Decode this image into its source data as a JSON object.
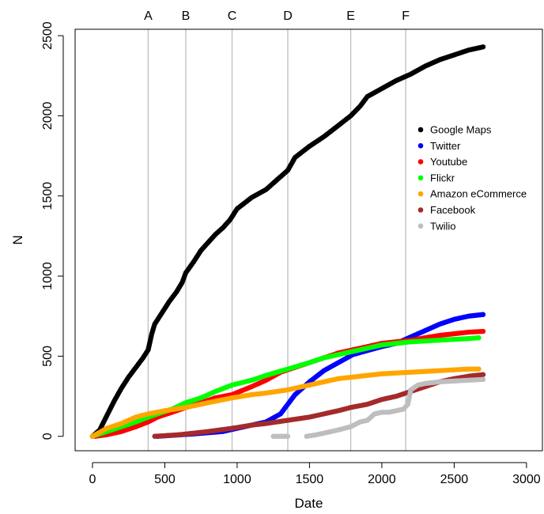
{
  "chart_data": {
    "type": "scatter",
    "xlabel": "Date",
    "ylabel": "N",
    "xlim": [
      -120,
      3110
    ],
    "ylim": [
      -90,
      2540
    ],
    "x_ticks": [
      0,
      500,
      1000,
      1500,
      2000,
      2500,
      3000
    ],
    "y_ticks": [
      0,
      500,
      1000,
      1500,
      2000,
      2500
    ],
    "grid": false,
    "legend_position": "right, upper-middle",
    "event_lines": [
      {
        "label": "A",
        "x": 385,
        "color": "#bebebe"
      },
      {
        "label": "B",
        "x": 645,
        "color": "#bebebe"
      },
      {
        "label": "C",
        "x": 965,
        "color": "#bebebe"
      },
      {
        "label": "D",
        "x": 1350,
        "color": "#bebebe"
      },
      {
        "label": "E",
        "x": 1785,
        "color": "#bebebe"
      },
      {
        "label": "F",
        "x": 2165,
        "color": "#bebebe"
      }
    ],
    "series": [
      {
        "name": "Google Maps",
        "color": "#000000",
        "points": [
          [
            0,
            0
          ],
          [
            50,
            40
          ],
          [
            100,
            130
          ],
          [
            150,
            220
          ],
          [
            200,
            300
          ],
          [
            250,
            370
          ],
          [
            300,
            430
          ],
          [
            350,
            490
          ],
          [
            385,
            540
          ],
          [
            410,
            640
          ],
          [
            430,
            700
          ],
          [
            480,
            770
          ],
          [
            530,
            840
          ],
          [
            580,
            900
          ],
          [
            620,
            960
          ],
          [
            645,
            1020
          ],
          [
            700,
            1090
          ],
          [
            750,
            1160
          ],
          [
            800,
            1210
          ],
          [
            850,
            1260
          ],
          [
            900,
            1300
          ],
          [
            950,
            1350
          ],
          [
            1000,
            1420
          ],
          [
            1100,
            1490
          ],
          [
            1200,
            1540
          ],
          [
            1300,
            1620
          ],
          [
            1350,
            1660
          ],
          [
            1400,
            1740
          ],
          [
            1500,
            1810
          ],
          [
            1600,
            1870
          ],
          [
            1700,
            1940
          ],
          [
            1785,
            2000
          ],
          [
            1850,
            2060
          ],
          [
            1900,
            2120
          ],
          [
            2000,
            2170
          ],
          [
            2100,
            2220
          ],
          [
            2200,
            2260
          ],
          [
            2300,
            2310
          ],
          [
            2400,
            2350
          ],
          [
            2500,
            2380
          ],
          [
            2600,
            2410
          ],
          [
            2700,
            2430
          ]
        ]
      },
      {
        "name": "Twitter",
        "color": "#0000ff",
        "points": [
          [
            450,
            0
          ],
          [
            700,
            15
          ],
          [
            900,
            30
          ],
          [
            1100,
            70
          ],
          [
            1200,
            90
          ],
          [
            1300,
            140
          ],
          [
            1350,
            200
          ],
          [
            1400,
            260
          ],
          [
            1500,
            340
          ],
          [
            1600,
            410
          ],
          [
            1700,
            460
          ],
          [
            1800,
            510
          ],
          [
            2000,
            560
          ],
          [
            2100,
            580
          ],
          [
            2200,
            620
          ],
          [
            2300,
            660
          ],
          [
            2400,
            700
          ],
          [
            2500,
            730
          ],
          [
            2600,
            750
          ],
          [
            2700,
            760
          ]
        ]
      },
      {
        "name": "Youtube",
        "color": "#ff0000",
        "points": [
          [
            20,
            0
          ],
          [
            100,
            10
          ],
          [
            200,
            30
          ],
          [
            300,
            60
          ],
          [
            385,
            90
          ],
          [
            450,
            120
          ],
          [
            550,
            150
          ],
          [
            645,
            180
          ],
          [
            750,
            210
          ],
          [
            850,
            240
          ],
          [
            965,
            260
          ],
          [
            1100,
            310
          ],
          [
            1200,
            350
          ],
          [
            1300,
            400
          ],
          [
            1400,
            430
          ],
          [
            1500,
            460
          ],
          [
            1600,
            490
          ],
          [
            1700,
            520
          ],
          [
            1800,
            540
          ],
          [
            1900,
            560
          ],
          [
            2000,
            580
          ],
          [
            2100,
            590
          ],
          [
            2200,
            600
          ],
          [
            2300,
            615
          ],
          [
            2400,
            630
          ],
          [
            2500,
            640
          ],
          [
            2600,
            650
          ],
          [
            2700,
            655
          ]
        ]
      },
      {
        "name": "Flickr",
        "color": "#00ff00",
        "points": [
          [
            0,
            0
          ],
          [
            100,
            30
          ],
          [
            200,
            60
          ],
          [
            300,
            90
          ],
          [
            385,
            120
          ],
          [
            450,
            140
          ],
          [
            550,
            170
          ],
          [
            645,
            210
          ],
          [
            750,
            240
          ],
          [
            850,
            280
          ],
          [
            965,
            320
          ],
          [
            1100,
            350
          ],
          [
            1200,
            380
          ],
          [
            1350,
            420
          ],
          [
            1500,
            460
          ],
          [
            1600,
            490
          ],
          [
            1700,
            510
          ],
          [
            1800,
            530
          ],
          [
            1900,
            550
          ],
          [
            2000,
            570
          ],
          [
            2100,
            580
          ],
          [
            2200,
            590
          ],
          [
            2300,
            595
          ],
          [
            2400,
            600
          ],
          [
            2500,
            605
          ],
          [
            2600,
            610
          ],
          [
            2670,
            615
          ]
        ]
      },
      {
        "name": "Amazon eCommerce",
        "color": "#ffa500",
        "points": [
          [
            0,
            0
          ],
          [
            100,
            50
          ],
          [
            200,
            80
          ],
          [
            300,
            120
          ],
          [
            385,
            140
          ],
          [
            500,
            160
          ],
          [
            645,
            180
          ],
          [
            800,
            210
          ],
          [
            965,
            240
          ],
          [
            1100,
            260
          ],
          [
            1200,
            270
          ],
          [
            1350,
            290
          ],
          [
            1500,
            320
          ],
          [
            1600,
            340
          ],
          [
            1700,
            360
          ],
          [
            1800,
            370
          ],
          [
            1900,
            380
          ],
          [
            2000,
            390
          ],
          [
            2100,
            395
          ],
          [
            2200,
            400
          ],
          [
            2300,
            405
          ],
          [
            2400,
            410
          ],
          [
            2500,
            415
          ],
          [
            2600,
            420
          ],
          [
            2670,
            420
          ]
        ]
      },
      {
        "name": "Facebook",
        "color": "#a52a2a",
        "points": [
          [
            430,
            0
          ],
          [
            600,
            10
          ],
          [
            800,
            30
          ],
          [
            965,
            50
          ],
          [
            1100,
            70
          ],
          [
            1200,
            80
          ],
          [
            1350,
            100
          ],
          [
            1500,
            120
          ],
          [
            1600,
            140
          ],
          [
            1700,
            160
          ],
          [
            1785,
            180
          ],
          [
            1900,
            200
          ],
          [
            2000,
            230
          ],
          [
            2100,
            250
          ],
          [
            2200,
            280
          ],
          [
            2300,
            310
          ],
          [
            2400,
            340
          ],
          [
            2500,
            360
          ],
          [
            2600,
            375
          ],
          [
            2700,
            385
          ]
        ]
      },
      {
        "name": "Twilio",
        "color": "#bebebe",
        "points": [
          [
            1250,
            0
          ],
          [
            1300,
            0
          ],
          [
            1350,
            0
          ],
          [
            1480,
            0
          ],
          [
            1550,
            10
          ],
          [
            1650,
            30
          ],
          [
            1700,
            40
          ],
          [
            1785,
            60
          ],
          [
            1850,
            90
          ],
          [
            1900,
            100
          ],
          [
            1950,
            140
          ],
          [
            2000,
            150
          ],
          [
            2050,
            150
          ],
          [
            2100,
            160
          ],
          [
            2150,
            170
          ],
          [
            2180,
            200
          ],
          [
            2200,
            290
          ],
          [
            2250,
            320
          ],
          [
            2300,
            330
          ],
          [
            2400,
            340
          ],
          [
            2500,
            345
          ],
          [
            2600,
            350
          ],
          [
            2700,
            355
          ]
        ]
      }
    ]
  }
}
